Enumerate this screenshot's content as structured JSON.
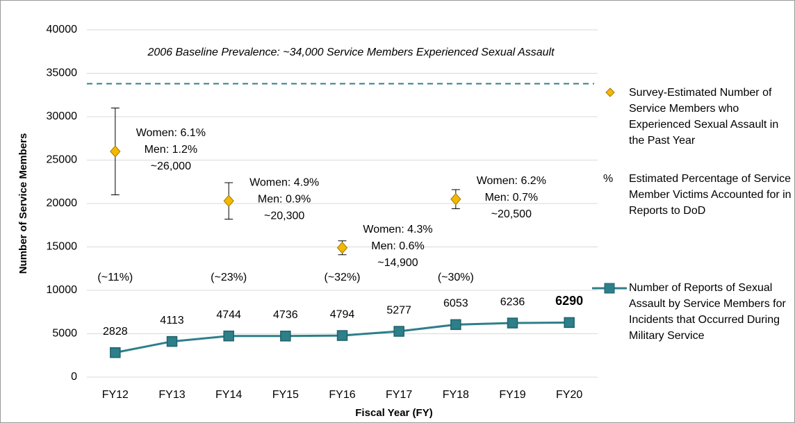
{
  "chart_data": {
    "type": "line",
    "x_label": "Fiscal Year (FY)",
    "y_label": "Number of Service Members",
    "categories": [
      "FY12",
      "FY13",
      "FY14",
      "FY15",
      "FY16",
      "FY17",
      "FY18",
      "FY19",
      "FY20"
    ],
    "ylim": [
      0,
      40000
    ],
    "yticks": [
      0,
      5000,
      10000,
      15000,
      20000,
      25000,
      30000,
      35000,
      40000
    ],
    "grid": true,
    "series": [
      {
        "name": "Survey-Estimated Number of Service Members who Experienced Sexual Assault in the Past Year",
        "type": "scatter",
        "color": "#f5b800",
        "values": [
          26000,
          null,
          20300,
          null,
          14900,
          null,
          20500,
          null,
          null
        ],
        "errors": [
          5000,
          null,
          2100,
          null,
          800,
          null,
          1100,
          null,
          null
        ],
        "value_labels": [
          "~26,000",
          null,
          "~20,300",
          null,
          "~14,900",
          null,
          "~20,500",
          null,
          null
        ],
        "notes": [
          [
            "Women: 6.1%",
            "Men: 1.2%"
          ],
          null,
          [
            "Women: 4.9%",
            "Men: 0.9%"
          ],
          null,
          [
            "Women: 4.3%",
            "Men: 0.6%"
          ],
          null,
          [
            "Women: 6.2%",
            "Men: 0.7%"
          ],
          null,
          null
        ]
      },
      {
        "name": "Number of Reports of Sexual Assault by Service Members for Incidents that Occurred During Military Service",
        "type": "line",
        "color": "#2d7f8a",
        "marker_color": "#21616b",
        "values": [
          2828,
          4113,
          4744,
          4736,
          4794,
          5277,
          6053,
          6236,
          6290
        ],
        "emphasize_last": true
      }
    ],
    "percent_labels": [
      "(~11%)",
      null,
      "(~23%)",
      null,
      "(~32%)",
      null,
      "(~30%)",
      null,
      null
    ],
    "percent_legend": {
      "symbol": "%",
      "text": "Estimated Percentage of Service Member Victims Accounted for in Reports to DoD"
    },
    "baseline": {
      "value": 33800,
      "label": "2006 Baseline Prevalence: ~34,000 Service Members Experienced Sexual Assault",
      "color": "#2d7f8a"
    }
  }
}
